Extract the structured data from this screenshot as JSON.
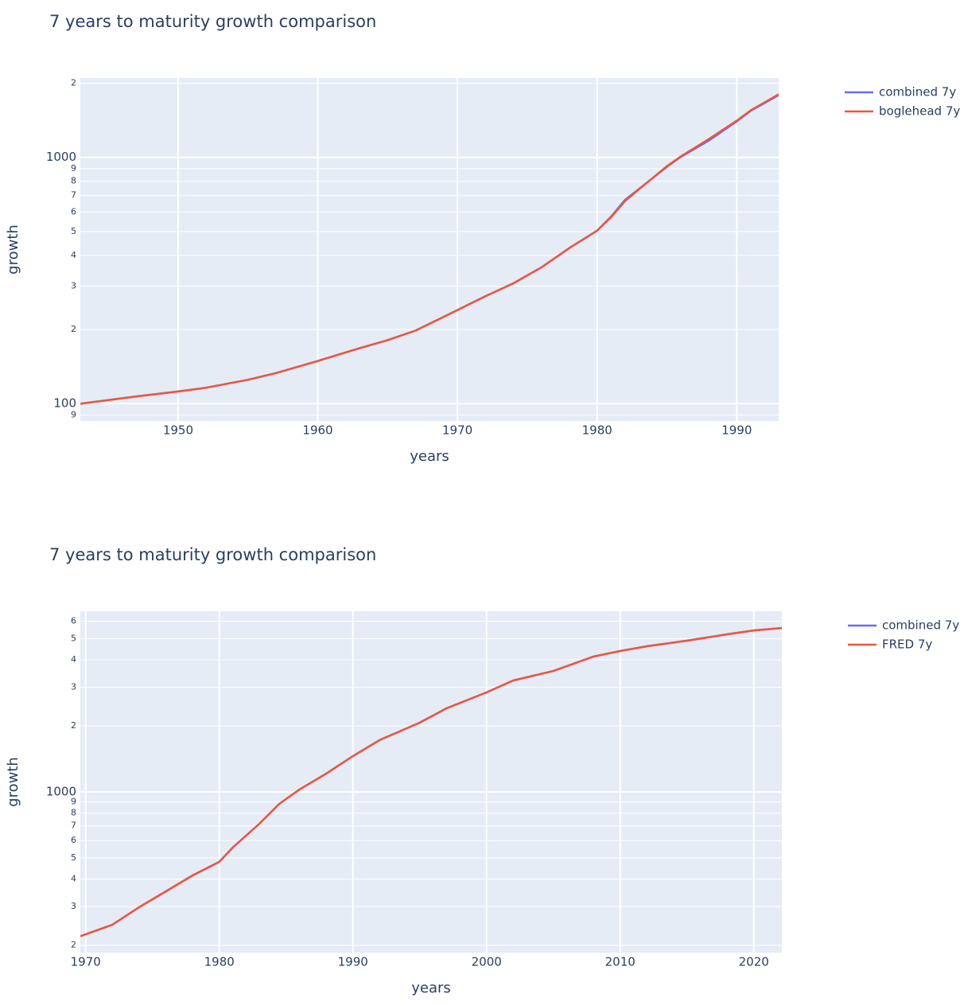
{
  "chart_data": [
    {
      "type": "line",
      "title": "7 years to maturity growth comparison",
      "x_label": "years",
      "y_label": "growth",
      "log_y": true,
      "grid": true,
      "legend": "outside-right",
      "x": [
        1943,
        1947,
        1950,
        1952,
        1955,
        1957,
        1960,
        1963,
        1965,
        1967,
        1969,
        1972,
        1974,
        1976,
        1978,
        1980,
        1981,
        1982,
        1983,
        1985,
        1986,
        1988,
        1990,
        1991,
        1993
      ],
      "series": [
        {
          "name": "combined 7y",
          "color": "#636efa",
          "values": [
            100,
            107,
            112,
            116,
            125,
            133,
            149,
            168,
            181,
            198,
            225,
            273,
            308,
            357,
            428,
            504,
            575,
            672,
            745,
            915,
            1005,
            1170,
            1400,
            1545,
            1790
          ]
        },
        {
          "name": "boglehead 7y",
          "color": "#ef553b",
          "values": [
            100,
            107,
            112,
            116,
            125,
            133,
            149,
            168,
            181,
            198,
            225,
            273,
            308,
            357,
            428,
            504,
            571,
            664,
            742,
            921,
            1010,
            1187,
            1409,
            1552,
            1803
          ]
        }
      ],
      "xlim": [
        1943,
        1993
      ],
      "xticks": [
        1950,
        1960,
        1970,
        1980,
        1990
      ],
      "ylim": [
        85,
        2100
      ],
      "yticks": [
        {
          "value": 90,
          "label": "9"
        },
        100,
        {
          "value": 200,
          "label": "2"
        },
        {
          "value": 300,
          "label": "3"
        },
        {
          "value": 400,
          "label": "4"
        },
        {
          "value": 500,
          "label": "5"
        },
        {
          "value": 600,
          "label": "6"
        },
        {
          "value": 700,
          "label": "7"
        },
        {
          "value": 800,
          "label": "8"
        },
        {
          "value": 900,
          "label": "9"
        },
        1000,
        {
          "value": 2000,
          "label": "2"
        }
      ]
    },
    {
      "type": "line",
      "title": "7 years to maturity growth comparison",
      "x_label": "years",
      "y_label": "growth",
      "log_y": true,
      "grid": true,
      "legend": "outside-right",
      "x": [
        1969.6,
        1972,
        1974,
        1976,
        1978,
        1980,
        1981,
        1983,
        1984.5,
        1986,
        1988,
        1990,
        1992,
        1995,
        1997,
        2000,
        2002,
        2005,
        2008,
        2010,
        2012,
        2015,
        2018,
        2020,
        2022.1
      ],
      "series": [
        {
          "name": "combined 7y",
          "color": "#636efa",
          "values": [
            220,
            248,
            298,
            352,
            416,
            480,
            557,
            716,
            883,
            1025,
            1211,
            1456,
            1722,
            2069,
            2404,
            2840,
            3220,
            3557,
            4140,
            4385,
            4613,
            4890,
            5227,
            5445,
            5585
          ]
        },
        {
          "name": "FRED 7y",
          "color": "#ef553b",
          "values": [
            220,
            248,
            298,
            352,
            416,
            480,
            557,
            716,
            883,
            1025,
            1211,
            1456,
            1722,
            2069,
            2404,
            2840,
            3220,
            3557,
            4140,
            4385,
            4613,
            4890,
            5227,
            5445,
            5585
          ]
        }
      ],
      "xlim": [
        1969.6,
        2022.1
      ],
      "xticks": [
        1970,
        1980,
        1990,
        2000,
        2010,
        2020
      ],
      "ylim": [
        185,
        6660
      ],
      "yticks": [
        {
          "value": 200,
          "label": "2"
        },
        {
          "value": 300,
          "label": "3"
        },
        {
          "value": 400,
          "label": "4"
        },
        {
          "value": 500,
          "label": "5"
        },
        {
          "value": 600,
          "label": "6"
        },
        {
          "value": 700,
          "label": "7"
        },
        {
          "value": 800,
          "label": "8"
        },
        {
          "value": 900,
          "label": "9"
        },
        1000,
        {
          "value": 2000,
          "label": "2"
        },
        {
          "value": 3000,
          "label": "3"
        },
        {
          "value": 4000,
          "label": "4"
        },
        {
          "value": 5000,
          "label": "5"
        },
        {
          "value": 6000,
          "label": "6"
        }
      ]
    }
  ]
}
